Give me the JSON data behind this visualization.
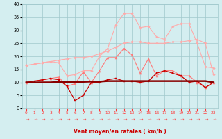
{
  "bg_color": "#d4eef0",
  "grid_color": "#a0c8cc",
  "xlabel": "Vent moyen/en rafales ( km/h )",
  "xlim": [
    -0.5,
    23.5
  ],
  "ylim": [
    0,
    40
  ],
  "yticks": [
    0,
    5,
    10,
    15,
    20,
    25,
    30,
    35,
    40
  ],
  "xtick_labels": [
    "0",
    "1",
    "2",
    "3",
    "4",
    "5",
    "6",
    "7",
    "8",
    "9",
    "10",
    "11",
    "12",
    "13",
    "14",
    "15",
    "16",
    "17",
    "18",
    "19",
    "20",
    "21",
    "22",
    "23"
  ],
  "series": [
    {
      "color": "#ffaaaa",
      "linewidth": 0.8,
      "marker": "D",
      "markersize": 1.8,
      "values": [
        16.5,
        17.0,
        17.5,
        18.0,
        18.5,
        19.0,
        19.5,
        19.5,
        20.0,
        21.0,
        22.0,
        23.5,
        25.0,
        25.5,
        25.5,
        25.0,
        25.0,
        25.0,
        25.5,
        25.5,
        26.0,
        26.5,
        25.0,
        13.0
      ]
    },
    {
      "color": "#ffaaaa",
      "linewidth": 0.8,
      "marker": "D",
      "markersize": 1.8,
      "values": [
        16.5,
        17.0,
        17.5,
        18.0,
        17.5,
        12.5,
        13.0,
        14.5,
        14.5,
        20.0,
        23.0,
        32.0,
        36.5,
        36.5,
        31.0,
        31.5,
        27.5,
        26.5,
        31.5,
        32.5,
        32.5,
        25.0,
        16.0,
        15.5
      ]
    },
    {
      "color": "#ff7777",
      "linewidth": 0.8,
      "marker": "^",
      "markersize": 2.2,
      "values": [
        10.0,
        10.5,
        11.0,
        11.5,
        12.0,
        8.5,
        9.5,
        14.0,
        10.0,
        14.5,
        19.5,
        19.5,
        23.0,
        20.5,
        13.5,
        19.0,
        12.5,
        14.5,
        14.5,
        12.5,
        12.5,
        10.0,
        8.0,
        10.0
      ]
    },
    {
      "color": "#cc0000",
      "linewidth": 0.9,
      "marker": "s",
      "markersize": 2.0,
      "values": [
        10.0,
        10.5,
        11.0,
        11.5,
        11.0,
        8.5,
        3.0,
        5.0,
        10.0,
        10.0,
        11.0,
        11.5,
        10.5,
        10.5,
        10.0,
        10.5,
        13.5,
        14.5,
        13.5,
        12.5,
        10.0,
        10.5,
        8.0,
        10.0
      ]
    },
    {
      "color": "#880000",
      "linewidth": 1.8,
      "marker": null,
      "markersize": 0,
      "values": [
        10.0,
        10.0,
        10.0,
        10.0,
        10.2,
        10.2,
        10.2,
        10.2,
        10.3,
        10.3,
        10.5,
        10.5,
        10.5,
        10.5,
        10.5,
        10.5,
        10.5,
        10.5,
        10.5,
        10.5,
        10.5,
        10.5,
        10.5,
        10.0
      ]
    }
  ],
  "arrow_color": "#ff3333",
  "xlabel_color": "#cc0000",
  "xlabel_fontsize": 5.5,
  "tick_fontsize_x": 4.2,
  "tick_fontsize_y": 4.8
}
